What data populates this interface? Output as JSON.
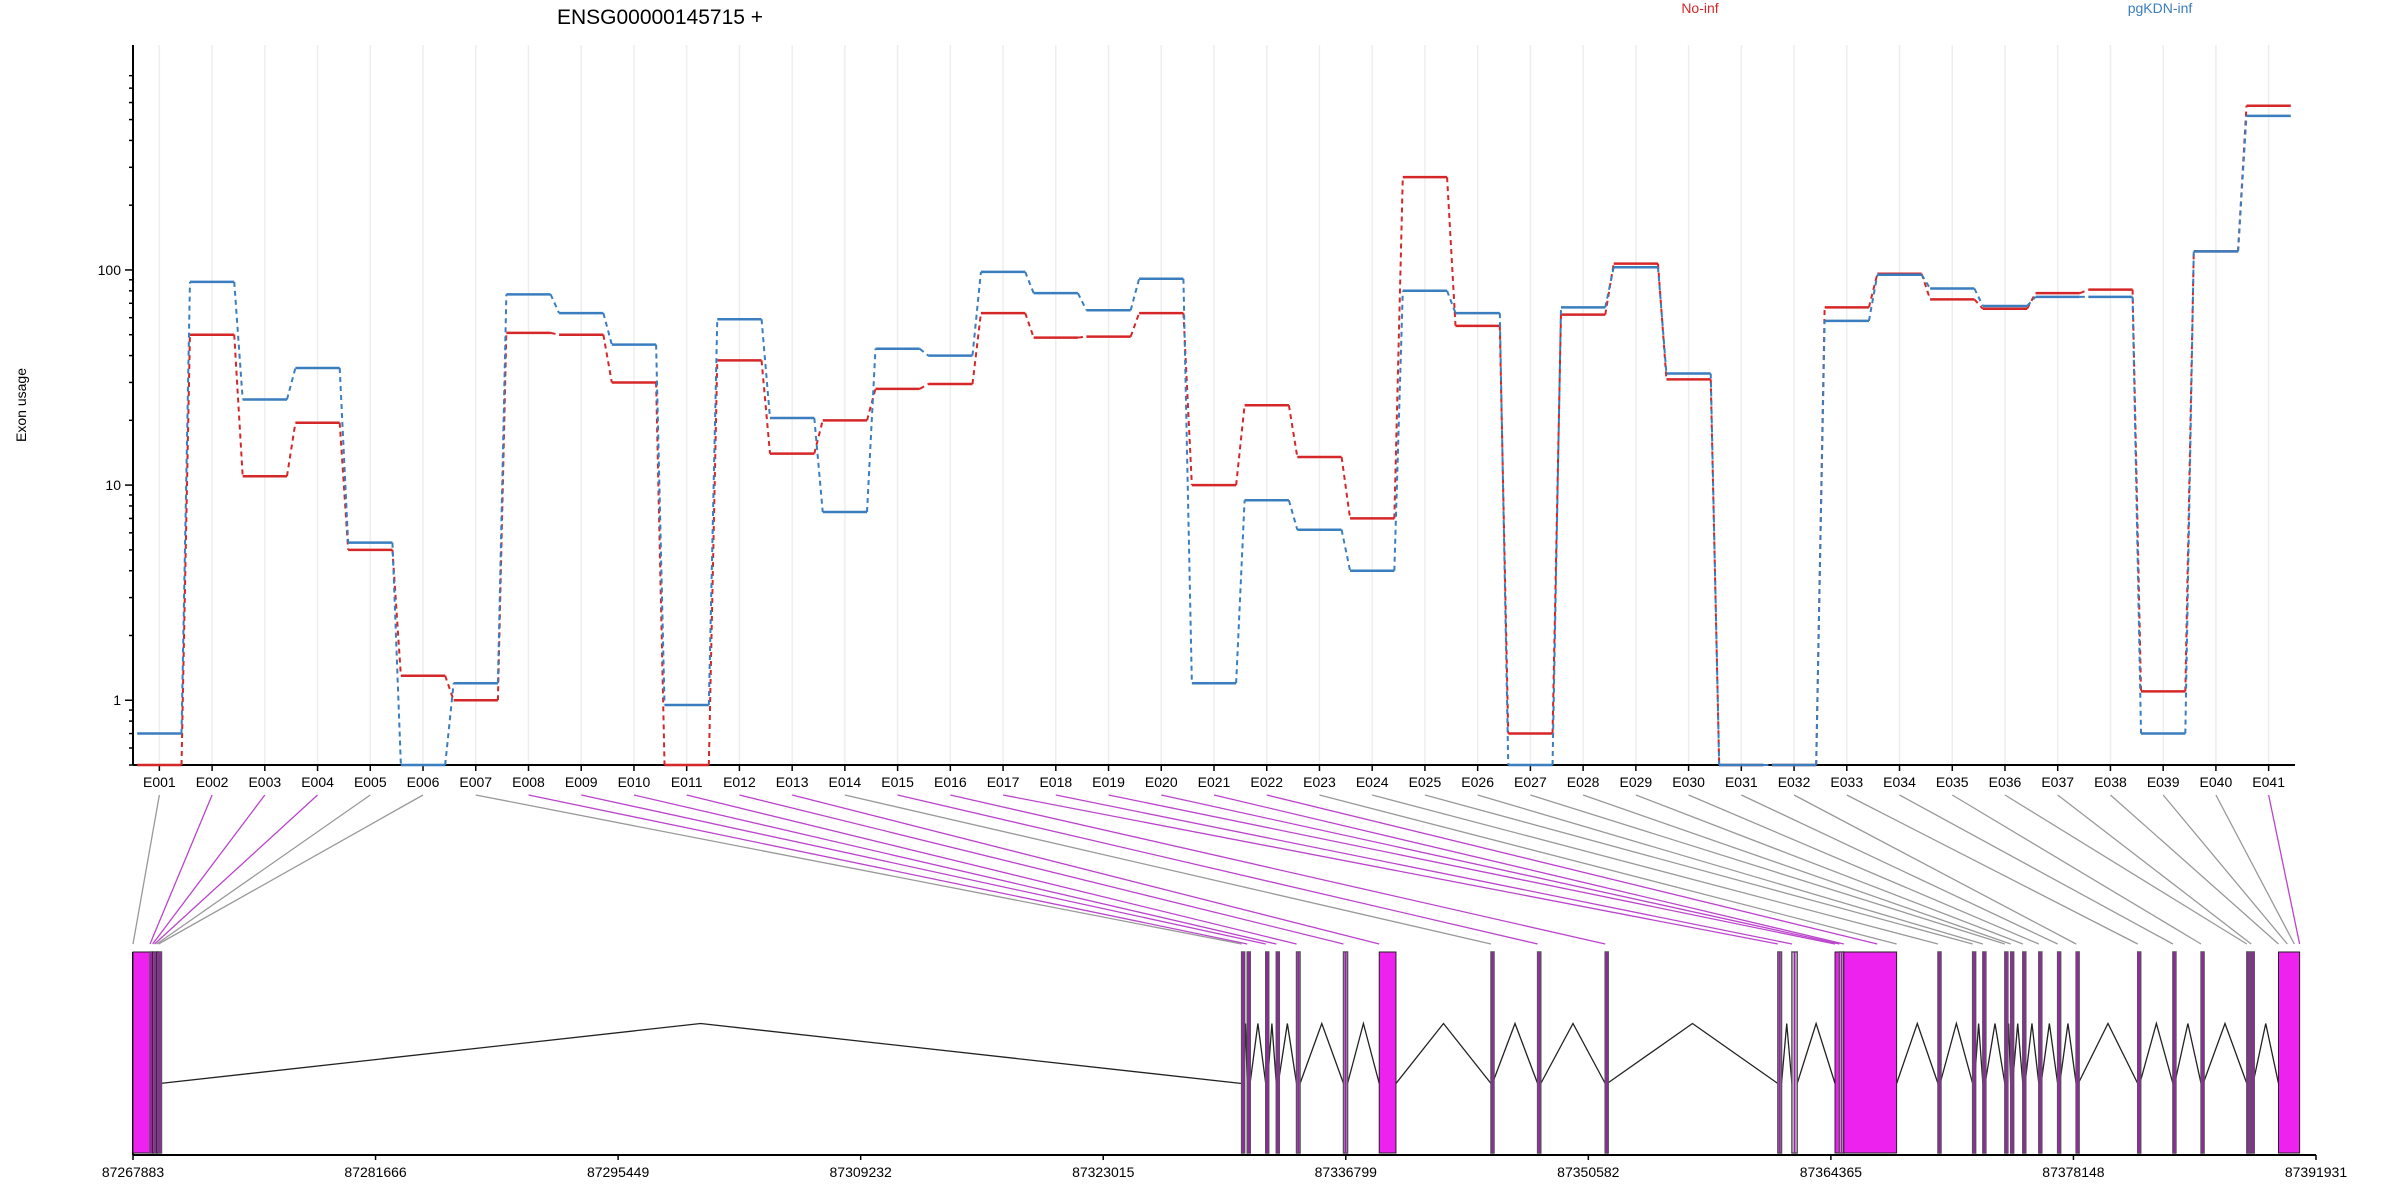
{
  "chart_data": {
    "type": "line",
    "title": "ENSG00000145715 +",
    "xlabel": "",
    "ylabel": "Exon usage",
    "yscale": "log",
    "ylim": [
      0.5,
      850
    ],
    "yticks": [
      1,
      10,
      100
    ],
    "grid": "vertical",
    "legend_position": "top-right",
    "categories": [
      "E001",
      "E002",
      "E003",
      "E004",
      "E005",
      "E006",
      "E007",
      "E008",
      "E009",
      "E010",
      "E011",
      "E012",
      "E013",
      "E014",
      "E015",
      "E016",
      "E017",
      "E018",
      "E019",
      "E020",
      "E021",
      "E022",
      "E023",
      "E024",
      "E025",
      "E026",
      "E027",
      "E028",
      "E029",
      "E030",
      "E031",
      "E032",
      "E033",
      "E034",
      "E035",
      "E036",
      "E037",
      "E038",
      "E039",
      "E040",
      "E041"
    ],
    "series": [
      {
        "name": "No-inf",
        "color": "#d62728",
        "values": [
          0.5,
          50,
          11,
          19.5,
          5,
          1.3,
          1,
          51,
          50,
          30,
          0.5,
          38,
          14,
          20,
          28,
          29.5,
          63,
          48.5,
          49,
          63,
          10,
          23.5,
          13.5,
          7,
          270,
          55,
          0.7,
          62,
          107,
          31,
          0.5,
          0.5,
          67,
          96,
          73,
          66,
          78,
          81,
          1.1,
          122,
          580
        ]
      },
      {
        "name": "pgKDN-inf",
        "color": "#3a7ebf",
        "values": [
          0.7,
          88,
          25,
          35,
          5.4,
          0.5,
          1.2,
          77,
          63,
          45,
          0.95,
          59,
          20.5,
          7.5,
          43,
          40,
          98,
          78,
          65,
          91,
          1.2,
          8.5,
          6.2,
          4,
          80,
          63,
          0.5,
          67,
          103,
          33,
          0.5,
          0.5,
          58,
          95,
          82,
          68,
          75,
          75,
          0.7,
          122,
          520
        ]
      }
    ],
    "gene_model": {
      "coordinate_ticks": [
        "87267883",
        "87281666",
        "87295449",
        "87309232",
        "87323015",
        "87336799",
        "87350582",
        "87364365",
        "87378148",
        "87391931"
      ],
      "region_start": 87267883,
      "region_end": 87391931,
      "exon_color": "#ee22ee",
      "exons": [
        {
          "start": 87267883,
          "end": 87268850,
          "type": "utr"
        },
        {
          "start": 87268850,
          "end": 87269000,
          "type": "cds"
        },
        {
          "start": 87269000,
          "end": 87269110,
          "type": "utr"
        },
        {
          "start": 87269110,
          "end": 87269230,
          "type": "cds"
        },
        {
          "start": 87269230,
          "end": 87269330,
          "type": "utr"
        },
        {
          "start": 87269330,
          "end": 87269400,
          "type": "cds"
        },
        {
          "start": 87330880,
          "end": 87331000,
          "type": "cds"
        },
        {
          "start": 87331200,
          "end": 87331360,
          "type": "cds"
        },
        {
          "start": 87332250,
          "end": 87332350,
          "type": "cds"
        },
        {
          "start": 87332850,
          "end": 87332960,
          "type": "cds"
        },
        {
          "start": 87334000,
          "end": 87334200,
          "type": "cds"
        },
        {
          "start": 87336670,
          "end": 87336900,
          "type": "cds"
        },
        {
          "start": 87338700,
          "end": 87339650,
          "type": "utr"
        },
        {
          "start": 87345050,
          "end": 87345130,
          "type": "cds"
        },
        {
          "start": 87347700,
          "end": 87347880,
          "type": "cds"
        },
        {
          "start": 87351540,
          "end": 87351650,
          "type": "cds"
        },
        {
          "start": 87361350,
          "end": 87361560,
          "type": "cds"
        },
        {
          "start": 87362150,
          "end": 87362450,
          "type": "cds"
        },
        {
          "start": 87364600,
          "end": 87364850,
          "type": "utr"
        },
        {
          "start": 87364850,
          "end": 87365100,
          "type": "cds"
        },
        {
          "start": 87365100,
          "end": 87368100,
          "type": "utr"
        },
        {
          "start": 87370450,
          "end": 87370570,
          "type": "cds"
        },
        {
          "start": 87372420,
          "end": 87372520,
          "type": "cds"
        },
        {
          "start": 87373000,
          "end": 87373130,
          "type": "cds"
        },
        {
          "start": 87374250,
          "end": 87374350,
          "type": "cds"
        },
        {
          "start": 87374580,
          "end": 87374690,
          "type": "cds"
        },
        {
          "start": 87375270,
          "end": 87375400,
          "type": "cds"
        },
        {
          "start": 87376180,
          "end": 87376310,
          "type": "cds"
        },
        {
          "start": 87377250,
          "end": 87377370,
          "type": "cds"
        },
        {
          "start": 87378300,
          "end": 87378420,
          "type": "cds"
        },
        {
          "start": 87381800,
          "end": 87381920,
          "type": "cds"
        },
        {
          "start": 87383800,
          "end": 87383900,
          "type": "cds"
        },
        {
          "start": 87385400,
          "end": 87385520,
          "type": "cds"
        },
        {
          "start": 87388000,
          "end": 87388150,
          "type": "cds"
        },
        {
          "start": 87388250,
          "end": 87388350,
          "type": "cds"
        },
        {
          "start": 87389800,
          "end": 87391000,
          "type": "utr"
        }
      ],
      "bin_anchors": [
        87267883,
        87268850,
        87269000,
        87269110,
        87269230,
        87269330,
        87330880,
        87331200,
        87332250,
        87332850,
        87334000,
        87336670,
        87338700,
        87345050,
        87347700,
        87351540,
        87361350,
        87362150,
        87364600,
        87364850,
        87365100,
        87367000,
        87368100,
        87370450,
        87372420,
        87373000,
        87374250,
        87374580,
        87375270,
        87376180,
        87377250,
        87378300,
        87381800,
        87383800,
        87385400,
        87388000,
        87388250,
        87389800,
        87390300,
        87390700,
        87391000
      ],
      "bin_highlight": [
        "grey",
        "purple",
        "purple",
        "purple",
        "grey",
        "grey",
        "grey",
        "purple",
        "purple",
        "purple",
        "purple",
        "purple",
        "purple",
        "grey",
        "purple",
        "purple",
        "purple",
        "purple",
        "purple",
        "purple",
        "purple",
        "purple",
        "grey",
        "grey",
        "grey",
        "grey",
        "grey",
        "grey",
        "grey",
        "grey",
        "grey",
        "grey",
        "grey",
        "grey",
        "grey",
        "grey",
        "grey",
        "grey",
        "grey",
        "grey",
        "purple"
      ]
    }
  }
}
